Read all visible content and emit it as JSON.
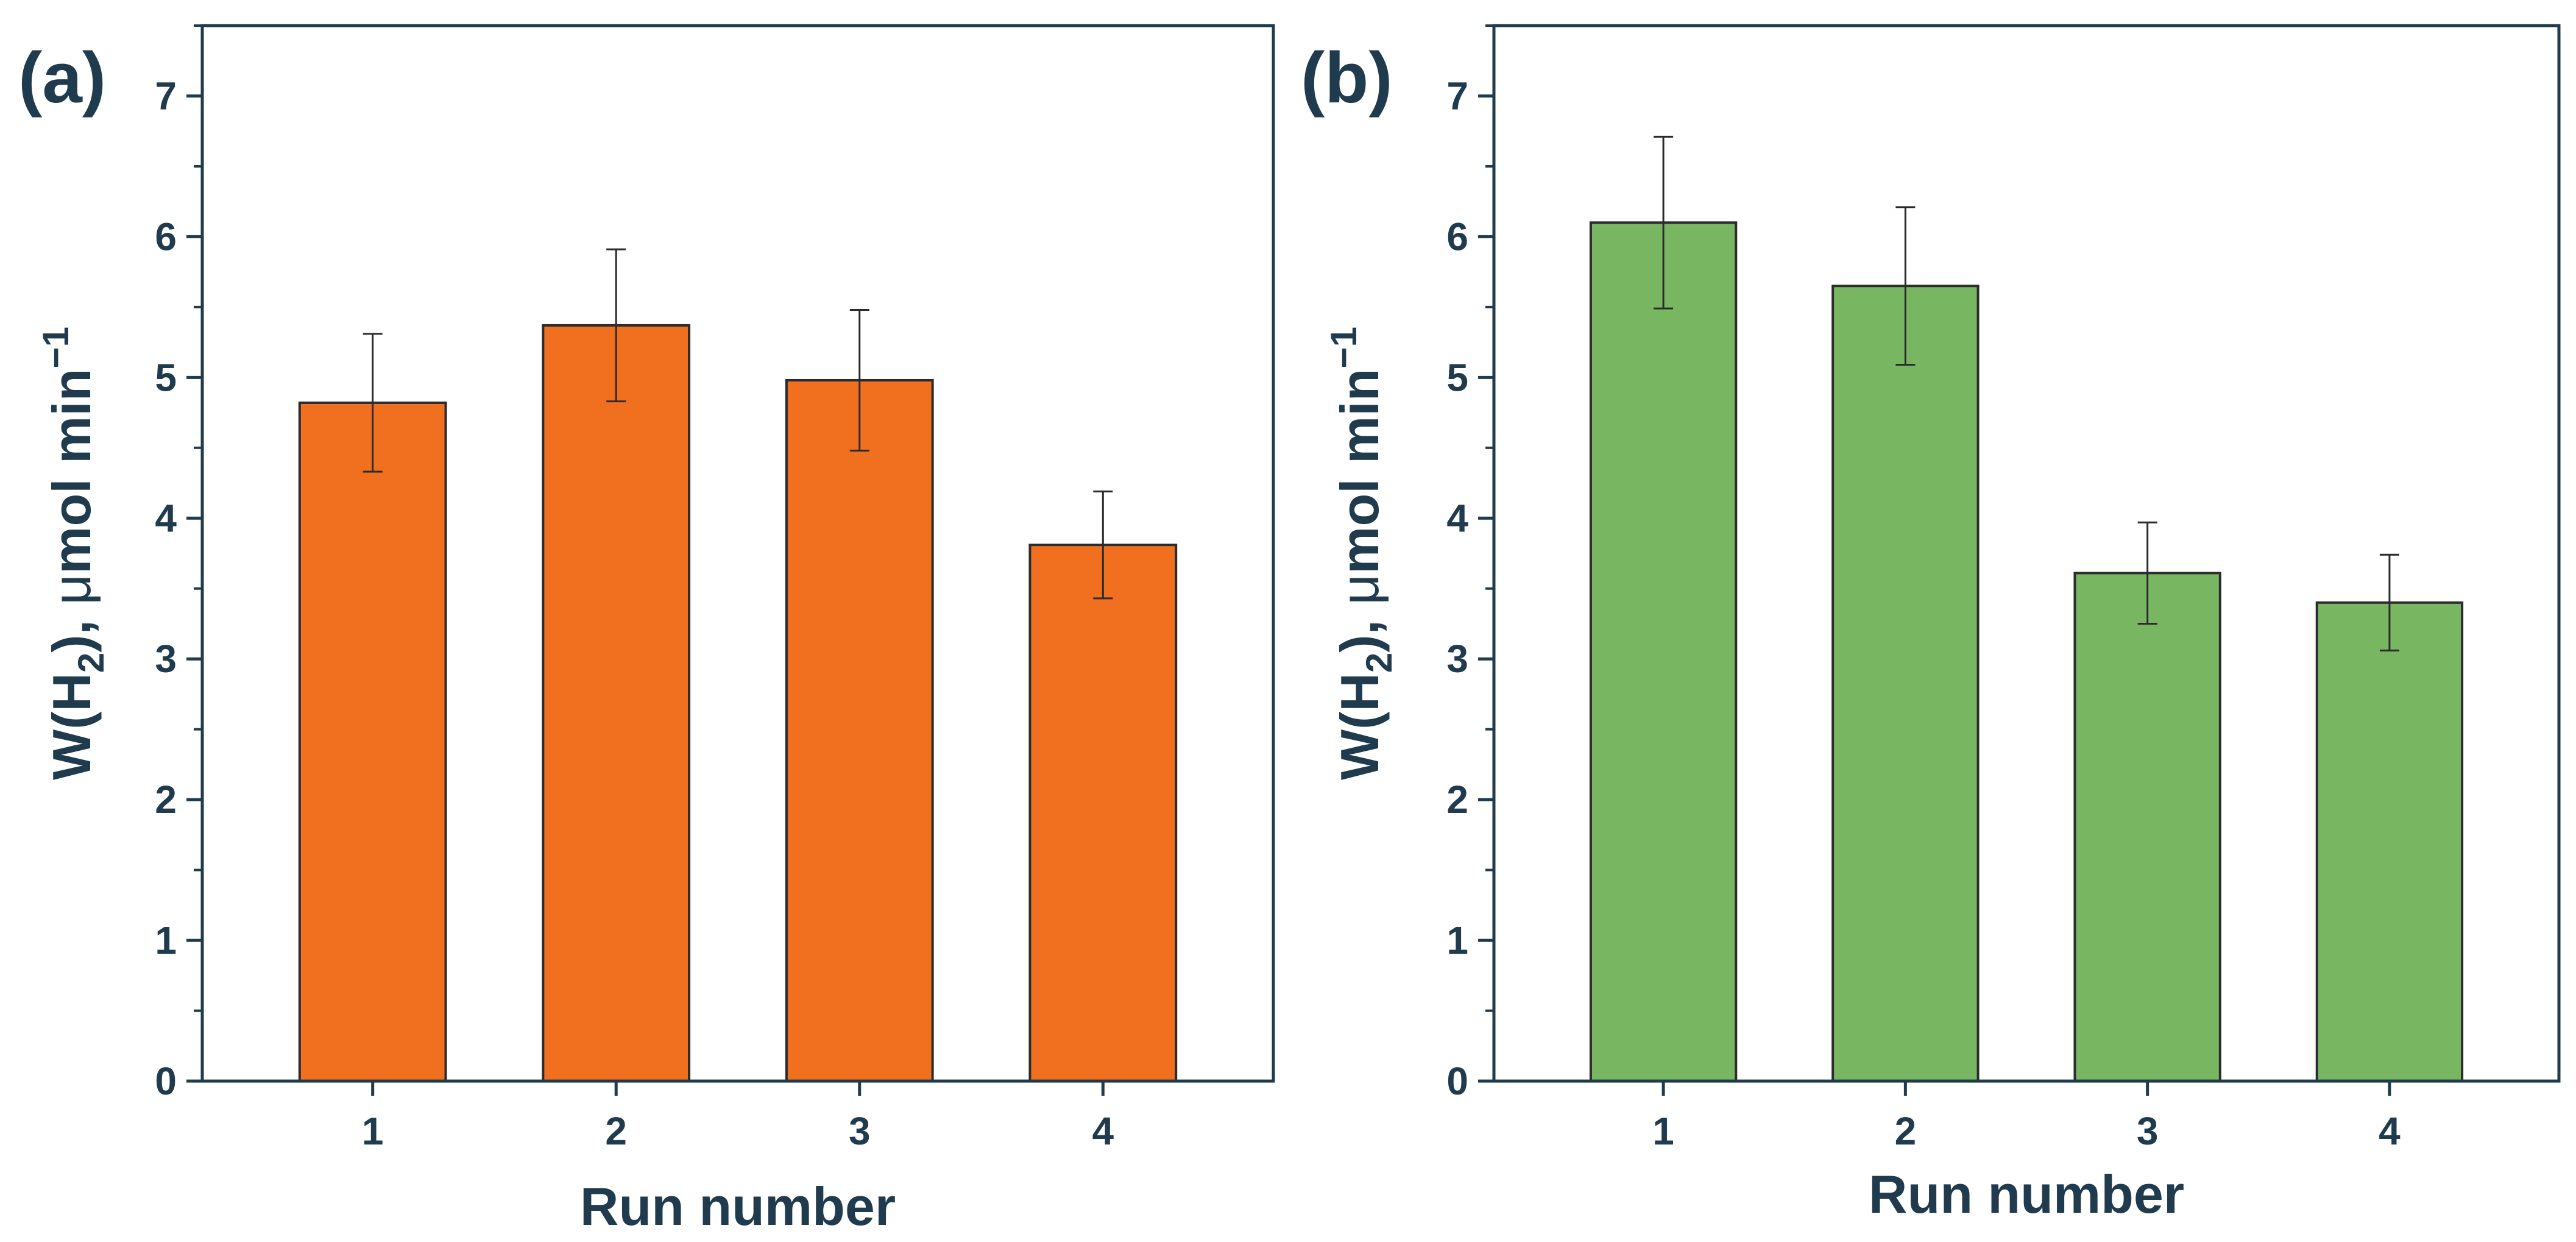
{
  "chart_data": [
    {
      "type": "bar",
      "panel_label": "(a)",
      "categories": [
        "1",
        "2",
        "3",
        "4"
      ],
      "values": [
        4.82,
        5.37,
        4.98,
        3.81
      ],
      "error": [
        0.49,
        0.54,
        0.5,
        0.38
      ],
      "bar_color": "#f07020",
      "xlabel": "Run number",
      "ylabel": "W(H2), μmol min−1",
      "ylabel_parts": {
        "pre": "W(H",
        "sub": "2",
        "mid": "), ",
        "mu": "μ",
        "post": "mol min",
        "sup": "−1"
      },
      "ylim": [
        0,
        7.5
      ],
      "yticks": [
        0,
        1,
        2,
        3,
        4,
        5,
        6,
        7
      ],
      "grid": false
    },
    {
      "type": "bar",
      "panel_label": "(b)",
      "categories": [
        "1",
        "2",
        "3",
        "4"
      ],
      "values": [
        6.1,
        5.65,
        3.61,
        3.4
      ],
      "error": [
        0.61,
        0.56,
        0.36,
        0.34
      ],
      "bar_color": "#78b662",
      "xlabel": "Run number",
      "ylabel": "W(H2), μmol min−1",
      "ylabel_parts": {
        "pre": "W(H",
        "sub": "2",
        "mid": "), ",
        "mu": "μ",
        "post": "mol min",
        "sup": "−1"
      },
      "ylim": [
        0,
        7.5
      ],
      "yticks": [
        0,
        1,
        2,
        3,
        4,
        5,
        6,
        7
      ],
      "grid": false
    }
  ]
}
